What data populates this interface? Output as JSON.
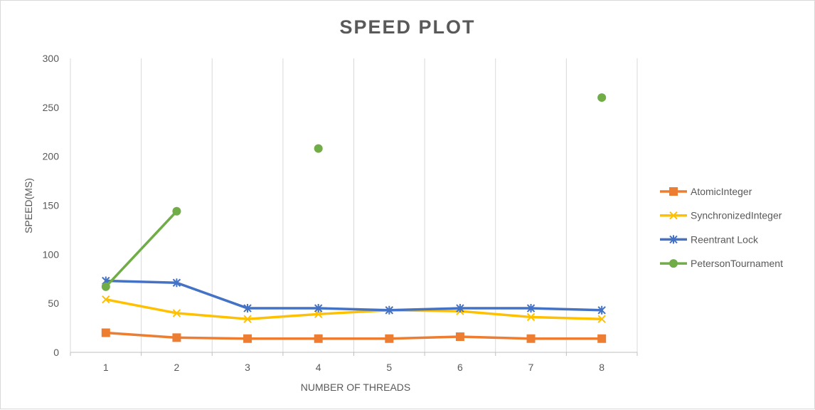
{
  "chart_data": {
    "type": "line",
    "title": "SPEED PLOT",
    "xlabel": "NUMBER OF THREADS",
    "ylabel": "SPEED(MS)",
    "categories": [
      "1",
      "2",
      "3",
      "4",
      "5",
      "6",
      "7",
      "8"
    ],
    "ylim": [
      0,
      300
    ],
    "yticks": [
      "0",
      "50",
      "100",
      "150",
      "200",
      "250",
      "300"
    ],
    "grid": "vertical",
    "legend_position": "right",
    "series": [
      {
        "name": "AtomicInteger",
        "color": "#ED7D31",
        "marker": "square",
        "values": [
          20,
          15,
          14,
          14,
          14,
          16,
          14,
          14
        ]
      },
      {
        "name": "SynchronizedInteger",
        "color": "#FFC000",
        "marker": "x",
        "values": [
          54,
          40,
          34,
          39,
          43,
          42,
          36,
          34
        ]
      },
      {
        "name": "Reentrant Lock",
        "color": "#4472C4",
        "marker": "star",
        "values": [
          73,
          71,
          45,
          45,
          43,
          45,
          45,
          43
        ]
      },
      {
        "name": "PetersonTournament",
        "color": "#70AD47",
        "marker": "circle",
        "values": [
          67,
          144,
          null,
          208,
          null,
          null,
          null,
          260
        ]
      }
    ]
  }
}
